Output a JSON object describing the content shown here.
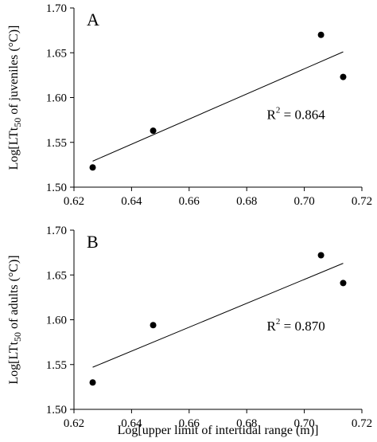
{
  "chart_data": [
    {
      "type": "scatter",
      "panel_label": "A",
      "ylabel": "Log[LTt50 of juveniles (°C)]",
      "ylabel_parts": {
        "pre": "Log[LTt",
        "sub": "50",
        "post": " of juveniles (°C)]"
      },
      "xlabel": "",
      "xlim": [
        0.62,
        0.72
      ],
      "ylim": [
        1.5,
        1.7
      ],
      "xticks": [
        "0.62",
        "0.64",
        "0.66",
        "0.68",
        "0.70",
        "0.72"
      ],
      "yticks": [
        "1.50",
        "1.55",
        "1.60",
        "1.65",
        "1.70"
      ],
      "points": [
        {
          "x": 0.6265,
          "y": 1.522
        },
        {
          "x": 0.6475,
          "y": 1.563
        },
        {
          "x": 0.7058,
          "y": 1.67
        },
        {
          "x": 0.7135,
          "y": 1.623
        }
      ],
      "trendline": {
        "x": [
          0.6265,
          0.7135
        ],
        "y": [
          1.529,
          1.651
        ]
      },
      "r2_label": {
        "pre": "R",
        "sup": "2",
        "post": " = 0.864"
      },
      "r2_anchor": {
        "x": 0.687,
        "y": 1.576
      }
    },
    {
      "type": "scatter",
      "panel_label": "B",
      "ylabel": "Log[LTt50 of adults (°C)]",
      "ylabel_parts": {
        "pre": "Log[LTt",
        "sub": "50",
        "post": " of adults (°C)]"
      },
      "xlabel": "Log[upper limit of intertidal range (m)]",
      "xlim": [
        0.62,
        0.72
      ],
      "ylim": [
        1.5,
        1.7
      ],
      "xticks": [
        "0.62",
        "0.64",
        "0.66",
        "0.68",
        "0.70",
        "0.72"
      ],
      "yticks": [
        "1.50",
        "1.55",
        "1.60",
        "1.65",
        "1.70"
      ],
      "points": [
        {
          "x": 0.6265,
          "y": 1.53
        },
        {
          "x": 0.6475,
          "y": 1.594
        },
        {
          "x": 0.7058,
          "y": 1.672
        },
        {
          "x": 0.7135,
          "y": 1.641
        }
      ],
      "trendline": {
        "x": [
          0.6265,
          0.7135
        ],
        "y": [
          1.547,
          1.663
        ]
      },
      "r2_label": {
        "pre": "R",
        "sup": "2",
        "post": " = 0.870"
      },
      "r2_anchor": {
        "x": 0.687,
        "y": 1.588
      }
    }
  ]
}
